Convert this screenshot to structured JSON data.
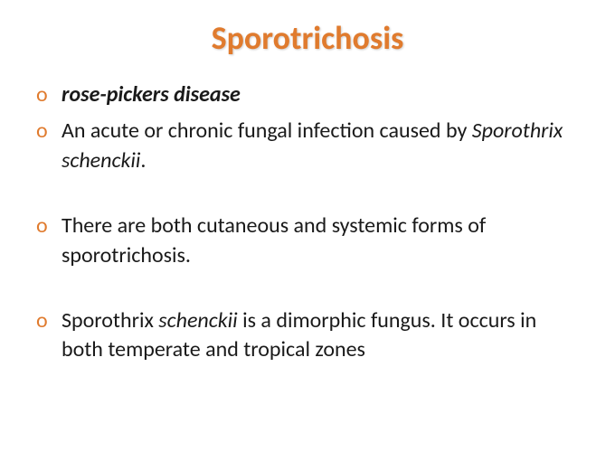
{
  "title": {
    "text": "Sporotrichosis",
    "color": "#e07b2e",
    "fontsize": 36,
    "fontweight": "bold"
  },
  "bullets": {
    "marker": "o",
    "marker_color": "#e07b2e",
    "text_color": "#1a1a1a",
    "fontsize": 24,
    "items": [
      {
        "segments": [
          {
            "text": "rose-pickers disease",
            "italic": true,
            "bold": true
          }
        ],
        "spaced": false
      },
      {
        "segments": [
          {
            "text": "An acute or chronic fungal infection caused by ",
            "italic": false,
            "bold": false
          },
          {
            "text": "Sporothrix schenckii",
            "italic": true,
            "bold": false
          },
          {
            "text": ".",
            "italic": false,
            "bold": false
          }
        ],
        "spaced": false
      },
      {
        "segments": [
          {
            "text": "There are both cutaneous and systemic forms of sporotrichosis.",
            "italic": false,
            "bold": false
          }
        ],
        "spaced": true
      },
      {
        "segments": [
          {
            "text": "Sporothrix ",
            "italic": false,
            "bold": false
          },
          {
            "text": "schenckii ",
            "italic": true,
            "bold": false
          },
          {
            "text": "is a dimorphic fungus. It occurs in both temperate and tropical zones",
            "italic": false,
            "bold": false
          }
        ],
        "spaced": true
      }
    ]
  },
  "background_color": "#ffffff"
}
